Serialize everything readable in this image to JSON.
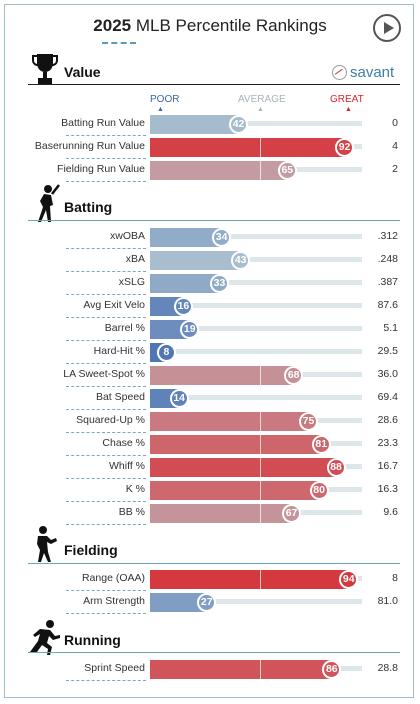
{
  "header": {
    "year": "2025",
    "title": "MLB Percentile Rankings"
  },
  "brand": "savant",
  "legend": {
    "poor": "POOR",
    "average": "AVERAGE",
    "great": "GREAT"
  },
  "sections": [
    {
      "title": "Value",
      "icon": "trophy-icon",
      "rows": [
        {
          "label": "Batting Run Value",
          "pct": 42,
          "value": "0"
        },
        {
          "label": "Baserunning Run Value",
          "pct": 92,
          "value": "4"
        },
        {
          "label": "Fielding Run Value",
          "pct": 65,
          "value": "2"
        }
      ]
    },
    {
      "title": "Batting",
      "icon": "batter-icon",
      "rows": [
        {
          "label": "xwOBA",
          "pct": 34,
          "value": ".312"
        },
        {
          "label": "xBA",
          "pct": 43,
          "value": ".248"
        },
        {
          "label": "xSLG",
          "pct": 33,
          "value": ".387"
        },
        {
          "label": "Avg Exit Velo",
          "pct": 16,
          "value": "87.6"
        },
        {
          "label": "Barrel %",
          "pct": 19,
          "value": "5.1"
        },
        {
          "label": "Hard-Hit %",
          "pct": 8,
          "value": "29.5"
        },
        {
          "label": "LA Sweet-Spot %",
          "pct": 68,
          "value": "36.0"
        },
        {
          "label": "Bat Speed",
          "pct": 14,
          "value": "69.4"
        },
        {
          "label": "Squared-Up %",
          "pct": 75,
          "value": "28.6"
        },
        {
          "label": "Chase %",
          "pct": 81,
          "value": "23.3"
        },
        {
          "label": "Whiff %",
          "pct": 88,
          "value": "16.7"
        },
        {
          "label": "K %",
          "pct": 80,
          "value": "16.3"
        },
        {
          "label": "BB %",
          "pct": 67,
          "value": "9.6"
        }
      ]
    },
    {
      "title": "Fielding",
      "icon": "fielder-icon",
      "rows": [
        {
          "label": "Range (OAA)",
          "pct": 94,
          "value": "8"
        },
        {
          "label": "Arm Strength",
          "pct": 27,
          "value": "81.0"
        }
      ]
    },
    {
      "title": "Running",
      "icon": "runner-icon",
      "rows": [
        {
          "label": "Sprint Speed",
          "pct": 86,
          "value": "28.8"
        }
      ]
    }
  ],
  "colors": {
    "poor": "#3d65b0",
    "average": "#b9cdd3",
    "great": "#d9252a",
    "avg_label": "#a8b4b8"
  }
}
